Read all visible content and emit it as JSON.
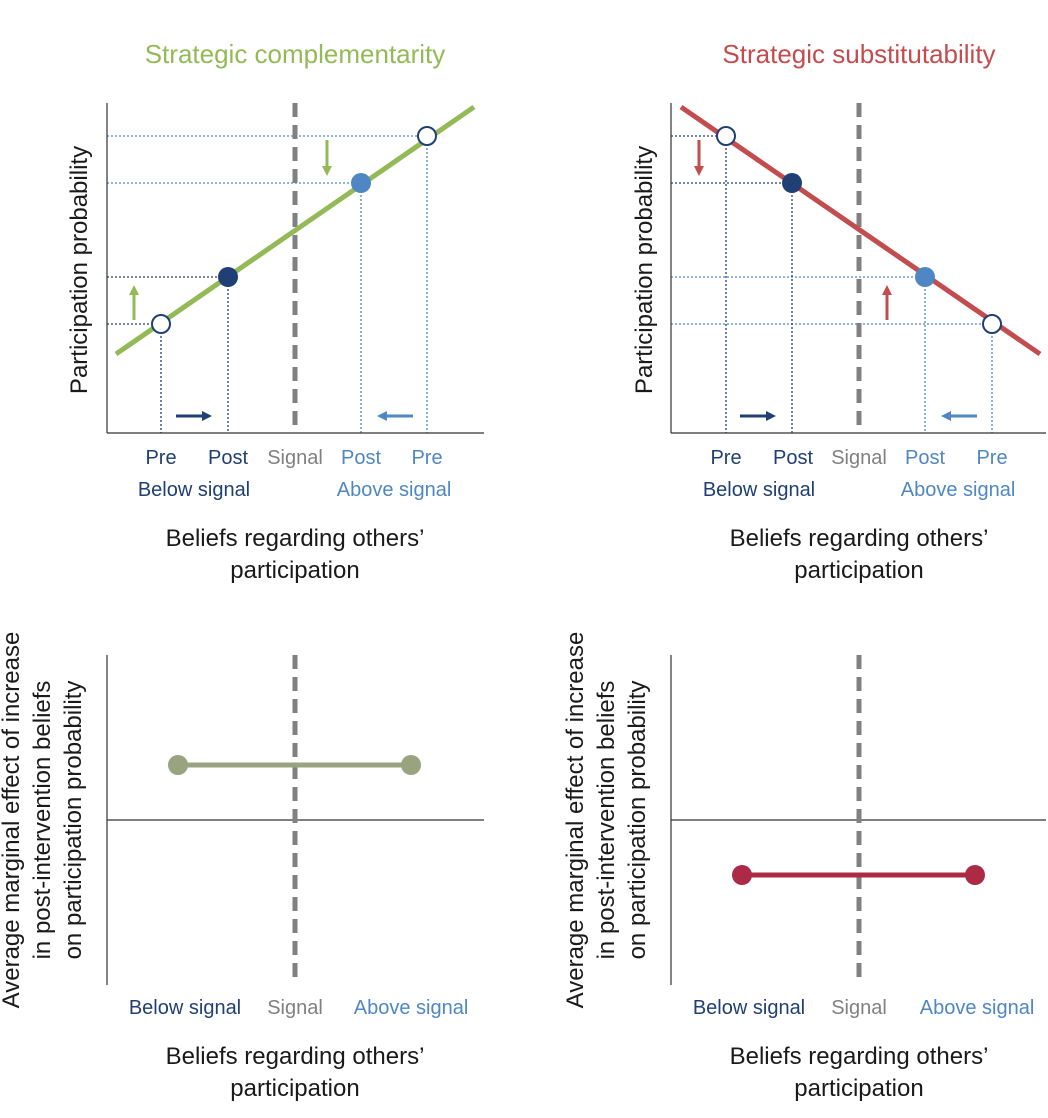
{
  "colors": {
    "green": "#93ba56",
    "red": "#c24c4e",
    "dark_blue": "#1f3f75",
    "mid_blue": "#4f87c5",
    "signal_gray": "#808080",
    "olive": "#9aa37f",
    "crimson": "#ac2a45",
    "axis": "#333333",
    "text": "#1a1a1a"
  },
  "chart_data": [
    {
      "type": "line",
      "title": "Strategic complementarity",
      "ylabel": "Participation probability",
      "xlabel": "Beliefs regarding others’ participation",
      "signal_label": "Signal",
      "point_labels": [
        "Pre",
        "Post",
        "Post",
        "Pre"
      ],
      "group_labels": [
        "Below signal",
        "Above signal"
      ]
    },
    {
      "type": "line",
      "title": "Strategic substitutability",
      "ylabel": "Participation probability",
      "xlabel": "Beliefs regarding others’ participation",
      "signal_label": "Signal",
      "point_labels": [
        "Pre",
        "Post",
        "Post",
        "Pre"
      ],
      "group_labels": [
        "Below signal",
        "Above signal"
      ]
    },
    {
      "type": "line",
      "ylabel": [
        "Average marginal effect of increase",
        "in post-intervention beliefs",
        "on participation probability"
      ],
      "xlabel": "Beliefs regarding others’ participation",
      "tick_labels": [
        "Below signal",
        "Signal",
        "Above signal"
      ],
      "effect": "positive"
    },
    {
      "type": "line",
      "ylabel": [
        "Average marginal effect of increase",
        "in post-intervention beliefs",
        "on participation probability"
      ],
      "xlabel": "Beliefs regarding others’ participation",
      "tick_labels": [
        "Below signal",
        "Signal",
        "Above signal"
      ],
      "effect": "negative"
    }
  ]
}
